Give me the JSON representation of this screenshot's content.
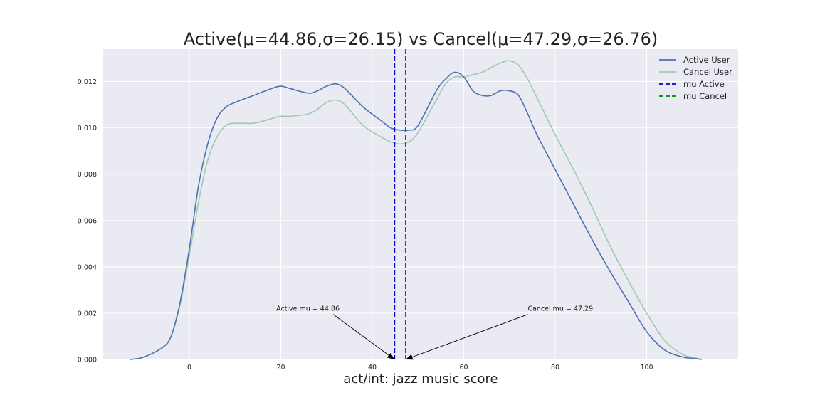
{
  "chart_data": {
    "type": "line",
    "title": "Active(μ=44.86,σ=26.15) vs Cancel(μ=47.29,σ=26.76)",
    "xlabel": "act/int: jazz music score",
    "ylabel": "",
    "xlim": [
      -19,
      120
    ],
    "ylim": [
      0,
      0.0134
    ],
    "grid": true,
    "legend_position": "top-right",
    "xticks": [
      0,
      20,
      40,
      60,
      80,
      100
    ],
    "xtick_labels": [
      "0",
      "20",
      "40",
      "60",
      "80",
      "100"
    ],
    "yticks": [
      0.0,
      0.002,
      0.004,
      0.006,
      0.008,
      0.01,
      0.012
    ],
    "ytick_labels": [
      "0.000",
      "0.002",
      "0.004",
      "0.006",
      "0.008",
      "0.010",
      "0.012"
    ],
    "series": [
      {
        "name": "Active User",
        "color": "#4c72b0",
        "x": [
          -13,
          -10,
          -6,
          -4,
          -2,
          0,
          2,
          4,
          6,
          8,
          10,
          14,
          18,
          20,
          22,
          26,
          28,
          30,
          32,
          34,
          38,
          42,
          44,
          46,
          48,
          50,
          54,
          56,
          58,
          60,
          62,
          64,
          66,
          68,
          70,
          72,
          74,
          76,
          80,
          84,
          88,
          92,
          96,
          100,
          104,
          108,
          110,
          112
        ],
        "y": [
          0.0,
          0.0001,
          0.0005,
          0.001,
          0.0025,
          0.0048,
          0.0075,
          0.0093,
          0.0104,
          0.0109,
          0.0111,
          0.0114,
          0.0117,
          0.0118,
          0.0117,
          0.0115,
          0.0116,
          0.0118,
          0.0119,
          0.0117,
          0.0109,
          0.0103,
          0.01,
          0.0099,
          0.0099,
          0.0101,
          0.0116,
          0.0121,
          0.0124,
          0.0122,
          0.0116,
          0.0114,
          0.0114,
          0.0116,
          0.0116,
          0.0114,
          0.0106,
          0.0097,
          0.0082,
          0.0067,
          0.0052,
          0.0038,
          0.0025,
          0.0012,
          0.0004,
          0.0001,
          5e-05,
          0.0
        ]
      },
      {
        "name": "Cancel User",
        "color": "#9dcaae",
        "x": [
          -13,
          -10,
          -6,
          -4,
          -2,
          0,
          2,
          4,
          6,
          8,
          10,
          14,
          18,
          20,
          22,
          26,
          28,
          30,
          32,
          34,
          38,
          42,
          44,
          46,
          48,
          50,
          54,
          56,
          58,
          60,
          62,
          64,
          66,
          68,
          70,
          72,
          74,
          76,
          80,
          84,
          88,
          92,
          96,
          100,
          104,
          108,
          110,
          112
        ],
        "y": [
          0.0,
          0.0001,
          0.0005,
          0.001,
          0.0024,
          0.0045,
          0.0068,
          0.0086,
          0.0096,
          0.0101,
          0.0102,
          0.0102,
          0.0104,
          0.0105,
          0.0105,
          0.0106,
          0.0108,
          0.0111,
          0.0112,
          0.011,
          0.0101,
          0.0096,
          0.0094,
          0.0093,
          0.0094,
          0.0098,
          0.0112,
          0.0119,
          0.0122,
          0.0122,
          0.0123,
          0.0124,
          0.0126,
          0.0128,
          0.0129,
          0.0127,
          0.0121,
          0.0113,
          0.0097,
          0.0082,
          0.0066,
          0.0049,
          0.0034,
          0.002,
          0.0008,
          0.0002,
          0.0001,
          0.0
        ]
      }
    ],
    "vlines": [
      {
        "name": "mu Active",
        "x": 44.86,
        "color": "#0000dd"
      },
      {
        "name": "mu Cancel",
        "x": 47.29,
        "color": "#008000"
      }
    ],
    "annotations": [
      {
        "text": "Active mu = 44.86",
        "text_xy": [
          19,
          0.0021
        ],
        "arrow_to": [
          44.86,
          0.0
        ]
      },
      {
        "text": "Cancel mu = 47.29",
        "text_xy": [
          74,
          0.0021
        ],
        "arrow_to": [
          47.29,
          0.0
        ]
      }
    ]
  }
}
